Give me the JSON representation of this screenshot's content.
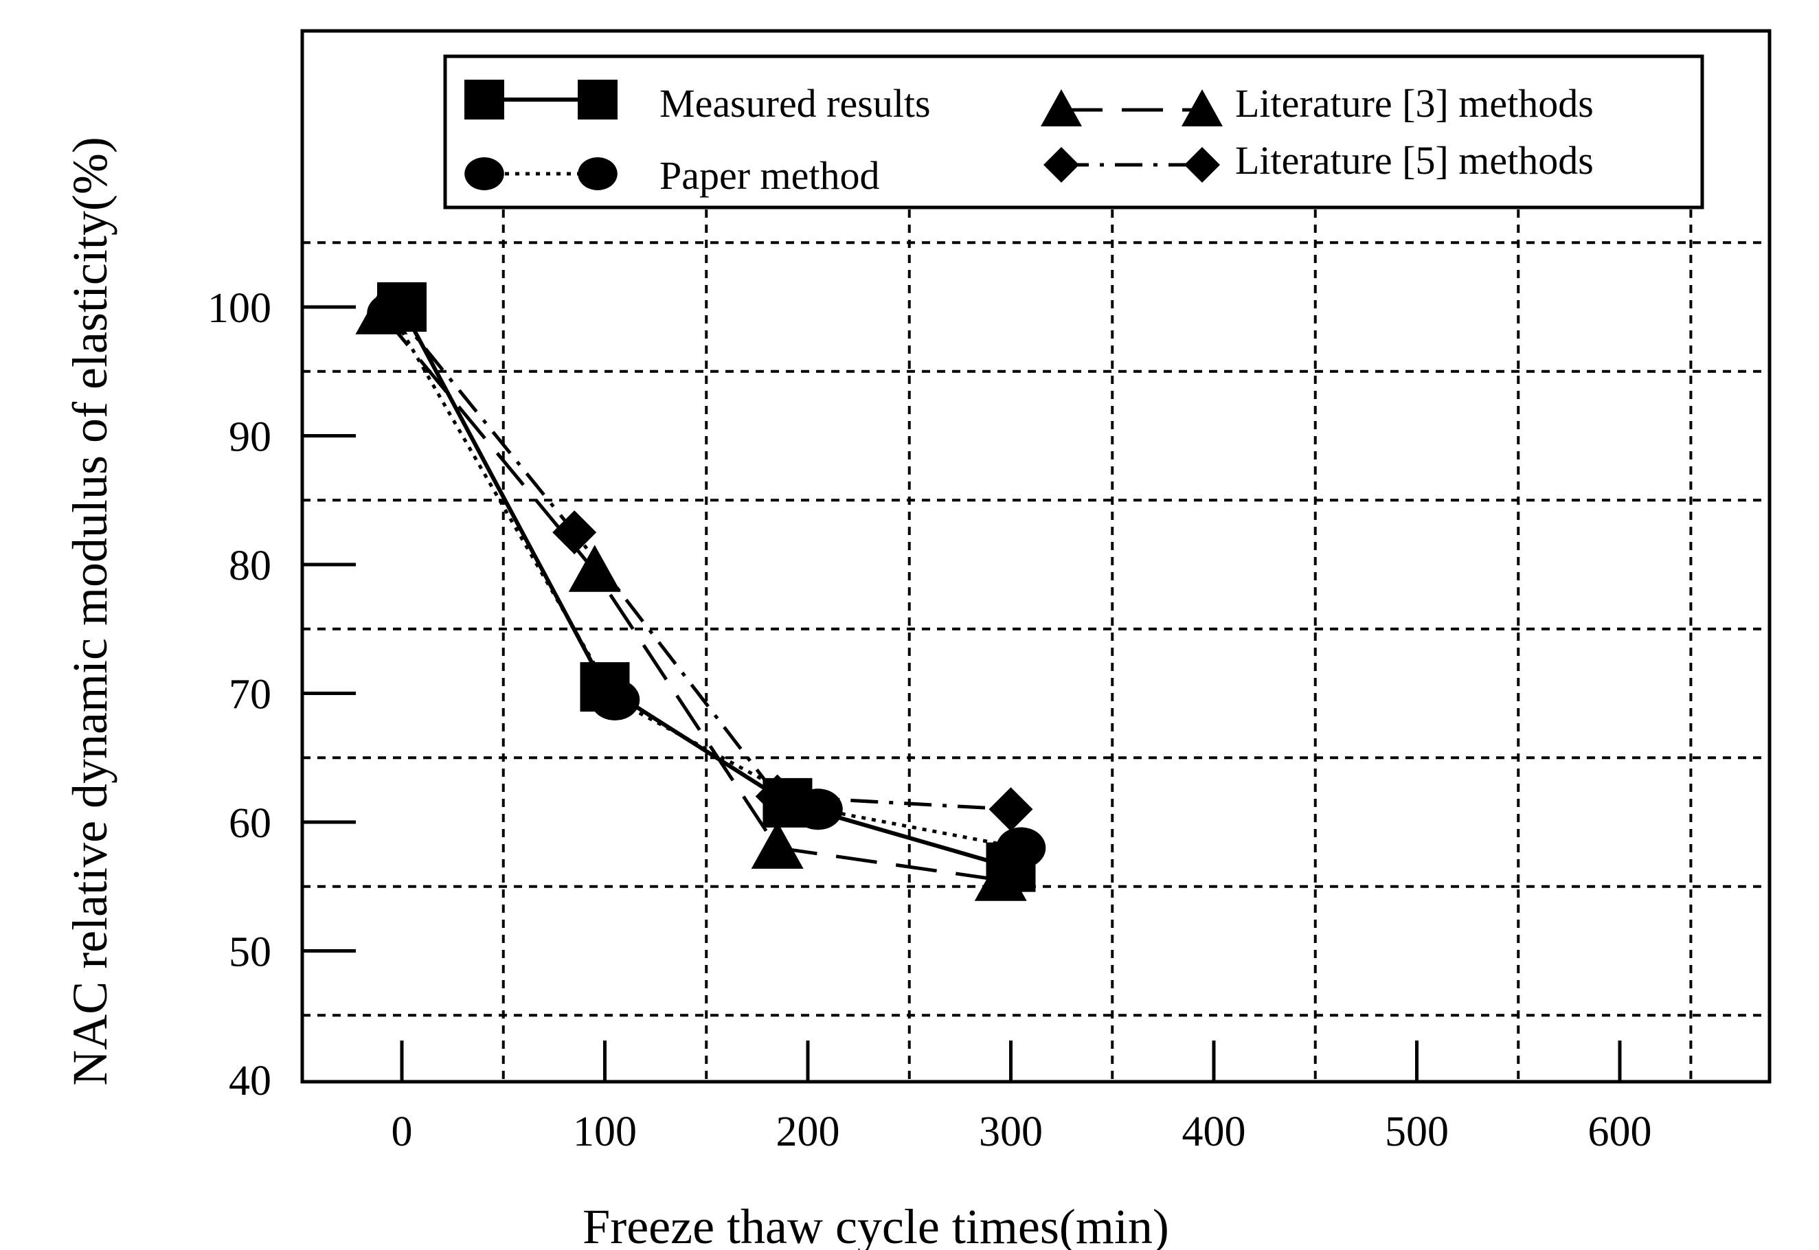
{
  "chart_data": {
    "type": "line",
    "title": "",
    "xlabel": "Freeze thaw cycle times(min)",
    "ylabel": "NAC relative dynamic modulus of elasticity(%)",
    "xlim": [
      -50,
      670
    ],
    "ylim": [
      40,
      120
    ],
    "x_ticks": [
      0,
      100,
      200,
      300,
      400,
      500,
      600
    ],
    "x_tick_labels": [
      "0",
      "100",
      "200",
      "300",
      "400",
      "500",
      "600"
    ],
    "y_ticks": [
      40,
      50,
      60,
      70,
      80,
      90,
      100
    ],
    "y_tick_labels": [
      "40",
      "50",
      "60",
      "70",
      "80",
      "90",
      "100"
    ],
    "grid": true,
    "legend_position": "top",
    "series": [
      {
        "name": "Measured results",
        "marker": "square",
        "line": "solid",
        "x": [
          0,
          100,
          190,
          300
        ],
        "y": [
          100,
          70.5,
          61.5,
          56.5
        ]
      },
      {
        "name": "Paper method",
        "marker": "circle",
        "line": "dotted",
        "x": [
          -5,
          105,
          205,
          305
        ],
        "y": [
          99.5,
          69.5,
          61,
          58
        ]
      },
      {
        "name": "Literature [3] methods",
        "marker": "triangle",
        "line": "longdash",
        "x": [
          -10,
          95,
          185,
          295
        ],
        "y": [
          99.5,
          79.5,
          58,
          55.5
        ]
      },
      {
        "name": "Literature [5] methods",
        "marker": "diamond",
        "line": "dashdot",
        "x": [
          -5,
          85,
          185,
          300
        ],
        "y": [
          100,
          82.5,
          62,
          61
        ]
      }
    ]
  }
}
